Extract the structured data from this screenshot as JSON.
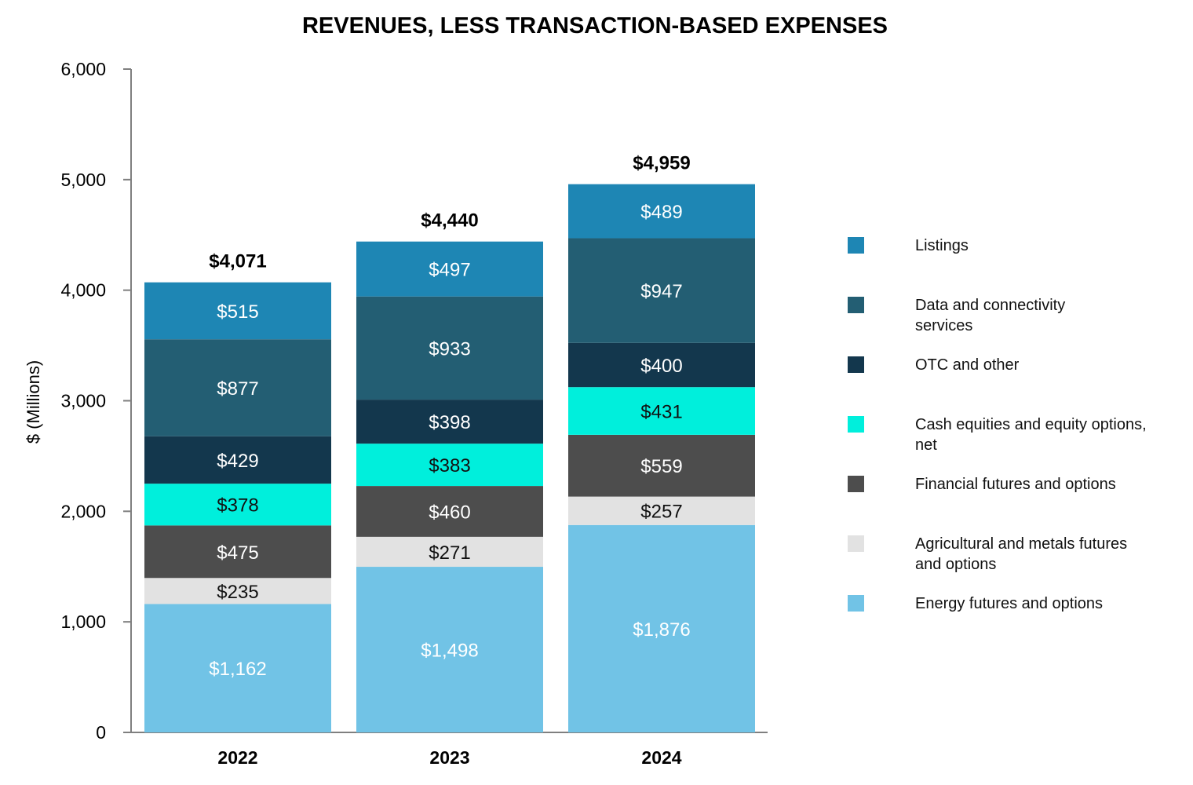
{
  "chart_data": {
    "type": "bar",
    "stacked": true,
    "title": "REVENUES, LESS TRANSACTION-BASED EXPENSES",
    "xlabel": "",
    "ylabel": "$ (Millions)",
    "ylim": [
      0,
      6000
    ],
    "yticks": [
      0,
      1000,
      2000,
      3000,
      4000,
      5000,
      6000
    ],
    "ytick_labels": [
      "0",
      "1,000",
      "2,000",
      "3,000",
      "4,000",
      "5,000",
      "6,000"
    ],
    "categories": [
      "2022",
      "2023",
      "2024"
    ],
    "totals": [
      4071,
      4440,
      4959
    ],
    "total_labels": [
      "$4,071",
      "$4,440",
      "$4,959"
    ],
    "legend_position": "right",
    "series": [
      {
        "name": "Energy futures and options",
        "color": "#71c3e6",
        "label_color": "#ffffff",
        "values": [
          1162,
          1498,
          1876
        ],
        "labels": [
          "$1,162",
          "$1,498",
          "$1,876"
        ]
      },
      {
        "name": "Agricultural and metals futures\nand options",
        "color": "#e2e2e2",
        "label_color": "#111111",
        "values": [
          235,
          271,
          257
        ],
        "labels": [
          "$235",
          "$271",
          "$257"
        ]
      },
      {
        "name": "Financial futures and options",
        "color": "#4d4d4d",
        "label_color": "#ffffff",
        "values": [
          475,
          460,
          559
        ],
        "labels": [
          "$475",
          "$460",
          "$559"
        ]
      },
      {
        "name": "Cash equities and equity options,\n net",
        "color": "#00efdc",
        "label_color": "#111111",
        "values": [
          378,
          383,
          431
        ],
        "labels": [
          "$378",
          "$383",
          "$431"
        ]
      },
      {
        "name": "OTC and other",
        "color": "#13374d",
        "label_color": "#ffffff",
        "values": [
          429,
          398,
          400
        ],
        "labels": [
          "$429",
          "$398",
          "$400"
        ]
      },
      {
        "name": "Data and connectivity\nservices",
        "color": "#235e73",
        "label_color": "#ffffff",
        "values": [
          877,
          933,
          947
        ],
        "labels": [
          "$877",
          "$933",
          "$947"
        ]
      },
      {
        "name": "Listings",
        "color": "#1e86b4",
        "label_color": "#ffffff",
        "values": [
          515,
          497,
          489
        ],
        "labels": [
          "$515",
          "$497",
          "$489"
        ]
      }
    ]
  }
}
